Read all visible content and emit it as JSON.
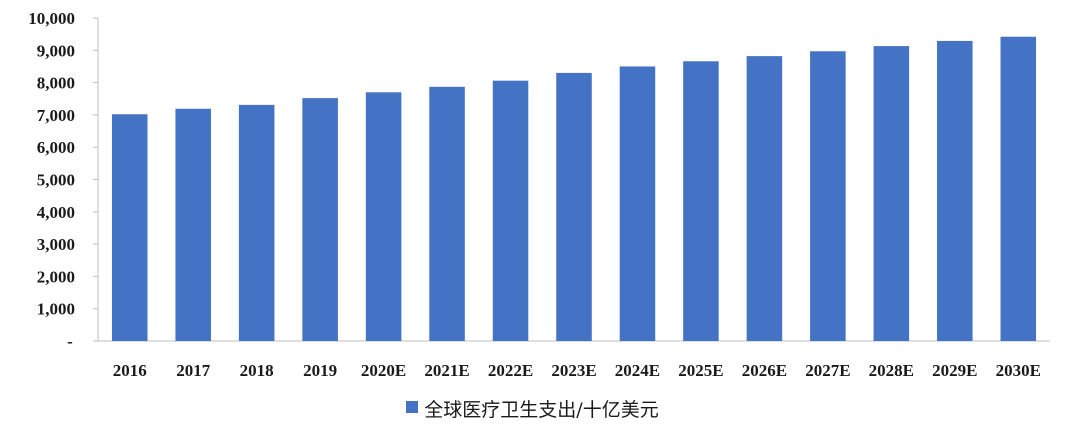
{
  "colors": {
    "bar": "#4472C4",
    "axis": "#bfbfbf"
  },
  "chart_data": {
    "type": "bar",
    "categories": [
      "2016",
      "2017",
      "2018",
      "2019",
      "2020E",
      "2021E",
      "2022E",
      "2023E",
      "2024E",
      "2025E",
      "2026E",
      "2027E",
      "2028E",
      "2029E",
      "2030E"
    ],
    "series": [
      {
        "name": "全球医疗卫生支出/十亿美元",
        "values": [
          7020,
          7190,
          7310,
          7520,
          7700,
          7870,
          8060,
          8300,
          8500,
          8660,
          8820,
          8970,
          9130,
          9290,
          9420
        ]
      }
    ],
    "ylim": [
      0,
      10000
    ],
    "yticks": [
      {
        "value": 0,
        "label": "-"
      },
      {
        "value": 1000,
        "label": "1,000"
      },
      {
        "value": 2000,
        "label": "2,000"
      },
      {
        "value": 3000,
        "label": "3,000"
      },
      {
        "value": 4000,
        "label": "4,000"
      },
      {
        "value": 5000,
        "label": "5,000"
      },
      {
        "value": 6000,
        "label": "6,000"
      },
      {
        "value": 7000,
        "label": "7,000"
      },
      {
        "value": 8000,
        "label": "8,000"
      },
      {
        "value": 9000,
        "label": "9,000"
      },
      {
        "value": 10000,
        "label": "10,000"
      }
    ],
    "grid": false,
    "legend_position": "bottom"
  }
}
